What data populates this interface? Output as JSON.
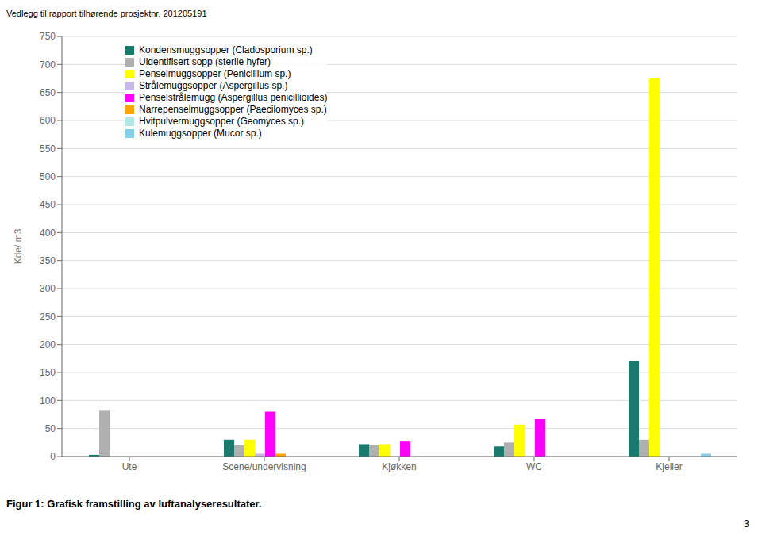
{
  "chart_data": {
    "type": "bar",
    "title": "Vedlegg til rapport tilhørende prosjektnr. 201205191",
    "y_label": "Kde/ m3",
    "annotations": [
      "Figur 1: Grafisk framstilling av luftanalyseresultater.",
      "3"
    ],
    "categories": [
      "Ute",
      "Scene/undervisning",
      "Kjøkken",
      "WC",
      "Kjeller"
    ],
    "series": [
      {
        "name": "Kondensmuggsopper (Cladosporium sp.)",
        "color": "#1a7a6e",
        "values": [
          3,
          30,
          22,
          18,
          170
        ]
      },
      {
        "name": "Uidentifisert sopp (sterile hyfer)",
        "color": "#b0b0b0",
        "values": [
          83,
          20,
          20,
          25,
          30
        ]
      },
      {
        "name": "Penselmuggsopper (Penicillium sp.)",
        "color": "#ffff00",
        "values": [
          0,
          30,
          22,
          57,
          675
        ]
      },
      {
        "name": "Strålemuggsopper (Aspergillus sp.)",
        "color": "#c8b8e8",
        "values": [
          0,
          5,
          0,
          0,
          0
        ]
      },
      {
        "name": "Penselstrålemugg (Aspergillus penicillioides)",
        "color": "#ff00ff",
        "values": [
          0,
          80,
          28,
          68,
          0
        ]
      },
      {
        "name": "Narrepenselmuggsopper (Paecilomyces sp.)",
        "color": "#ffa500",
        "values": [
          0,
          5,
          0,
          0,
          0
        ]
      },
      {
        "name": "Hvitpulvermuggsopper (Geomyces sp.)",
        "color": "#b0e8e8",
        "values": [
          0,
          0,
          0,
          0,
          0
        ]
      },
      {
        "name": "Kulemuggsopper (Mucor sp.)",
        "color": "#87ceeb",
        "values": [
          0,
          0,
          0,
          0,
          5
        ]
      }
    ],
    "ylim": [
      0,
      750
    ],
    "yticks": [
      0,
      50,
      100,
      150,
      200,
      250,
      300,
      350,
      400,
      450,
      500,
      550,
      600,
      650,
      700,
      750
    ],
    "grid": true,
    "legend": "upper left"
  }
}
